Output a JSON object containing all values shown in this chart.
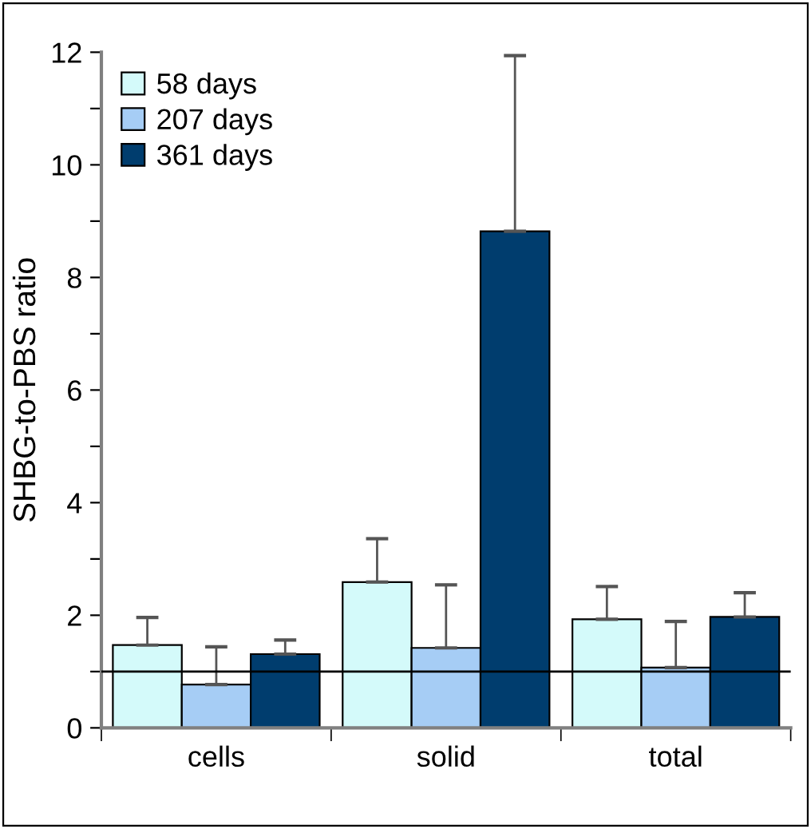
{
  "chart_data": {
    "type": "bar",
    "ylabel": "SHBG-to-PBS ratio",
    "categories": [
      "cells",
      "solid",
      "total"
    ],
    "series": [
      {
        "name": "58 days",
        "color": "#d4fafa",
        "values": [
          1.47,
          2.59,
          1.93
        ],
        "errors": [
          [
            1.47,
            1.96
          ],
          [
            2.59,
            3.36
          ],
          [
            1.93,
            2.51
          ]
        ]
      },
      {
        "name": "207 days",
        "color": "#a6cdf5",
        "values": [
          0.77,
          1.42,
          1.07
        ],
        "errors": [
          [
            0.77,
            1.44
          ],
          [
            1.42,
            2.54
          ],
          [
            1.07,
            1.89
          ]
        ]
      },
      {
        "name": "361 days",
        "color": "#003d6e",
        "values": [
          1.31,
          8.82,
          1.97
        ],
        "errors": [
          [
            1.31,
            1.56
          ],
          [
            8.82,
            11.94
          ],
          [
            1.97,
            2.4
          ]
        ]
      }
    ],
    "ylim": [
      0,
      12
    ],
    "yticks": [
      0,
      {
        "value": 1,
        "label": null
      },
      2,
      {
        "value": 3,
        "label": null
      },
      4,
      {
        "value": 5,
        "label": null
      },
      6,
      {
        "value": 7,
        "label": null
      },
      8,
      {
        "value": 9,
        "label": null
      },
      10,
      {
        "value": 11,
        "label": null
      },
      12
    ],
    "ref_lines": [
      {
        "axis": "y",
        "value": 1,
        "color": "#000000",
        "line_style": "solid"
      }
    ],
    "legend": "top left",
    "grid": false
  }
}
